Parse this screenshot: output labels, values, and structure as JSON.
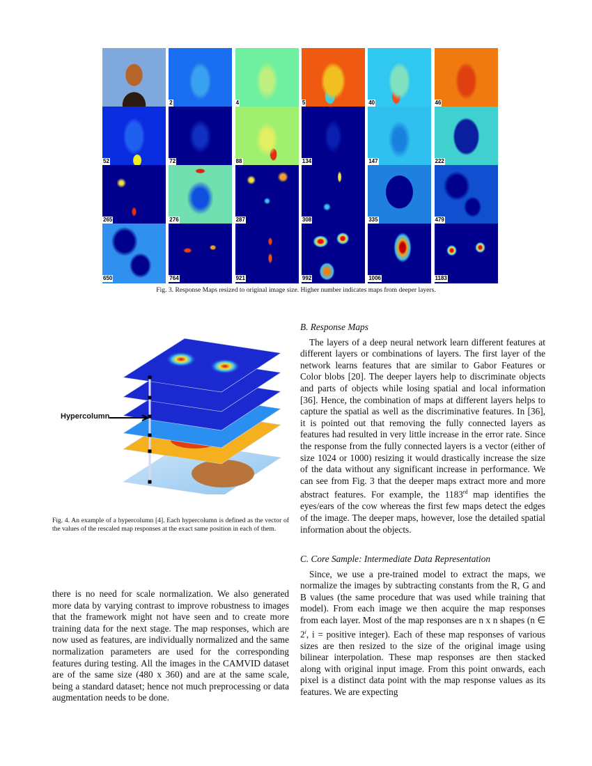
{
  "figure3": {
    "tiles": [
      {
        "label": "",
        "bg": "#7fa9dc",
        "kind": "photo"
      },
      {
        "label": "2",
        "bg": "#1a6ff0"
      },
      {
        "label": "4",
        "bg": "#6ef0a0"
      },
      {
        "label": "5",
        "bg": "#f05a10"
      },
      {
        "label": "40",
        "bg": "#30c8f0"
      },
      {
        "label": "46",
        "bg": "#f07a10"
      },
      {
        "label": "52",
        "bg": "#0a2ce0"
      },
      {
        "label": "72",
        "bg": "#00008c"
      },
      {
        "label": "88",
        "bg": "#a0f070"
      },
      {
        "label": "134",
        "bg": "#00008c"
      },
      {
        "label": "147",
        "bg": "#30c0f0"
      },
      {
        "label": "222",
        "bg": "#40d0d0"
      },
      {
        "label": "265",
        "bg": "#00008c"
      },
      {
        "label": "276",
        "bg": "#70e0b0"
      },
      {
        "label": "287",
        "bg": "#00008c"
      },
      {
        "label": "308",
        "bg": "#00008c"
      },
      {
        "label": "335",
        "bg": "#2080e0"
      },
      {
        "label": "479",
        "bg": "#1050d0"
      },
      {
        "label": "650",
        "bg": "#3090f0"
      },
      {
        "label": "764",
        "bg": "#00008c"
      },
      {
        "label": "921",
        "bg": "#00008c"
      },
      {
        "label": "992",
        "bg": "#00008c"
      },
      {
        "label": "1006",
        "bg": "#00008c"
      },
      {
        "label": "1183",
        "bg": "#00008c"
      }
    ],
    "caption": "Fig. 3.  Response Maps resized to original image size. Higher number indicates maps from deeper layers."
  },
  "figure4": {
    "annotation": "Hypercolumn",
    "caption": "Fig. 4.  An example of a hypercolumn [4]. Each hypercolumn is defined as the vector of the values of the rescaled map responses at the exact same position in each of them."
  },
  "left_column": {
    "paragraph": "there is no need for scale normalization. We also generated more data by varying contrast to improve robustness to images that the framework might not have seen and to create more training data for the next stage. The map responses, which are now used as features, are individually normalized and the same normalization parameters are used for the corresponding features during testing. All the images in the CAMVID dataset are of the same size (480 x 360) and are at the same scale, being a standard dataset; hence not much preprocessing or data augmentation needs to be done."
  },
  "section_b": {
    "heading": "B.  Response Maps",
    "text_before": "The layers of a deep neural network learn different features at different layers or combinations of layers. The first layer of the network learns features that are similar to Gabor Features or Color blobs [20]. The deeper layers help to discriminate objects and parts of objects while losing spatial and local information [36]. Hence, the combination of maps at different layers helps to capture the spatial as well as the discriminative features. In [36], it is pointed out that removing the fully connected layers as features had resulted in very little increase in the error rate. Since the response from the fully connected layers is a vector (either of size 1024 or 1000) resizing it would drastically increase the size of the data without any significant increase in performance. We can see from Fig. 3 that the deeper maps extract more and more abstract features. For example, the 1183",
    "superscript": "rd",
    "text_after": " map identifies the eyes/ears of the cow whereas the first few maps detect the edges of the image. The deeper maps, however, lose the detailed spatial information about the objects."
  },
  "section_c": {
    "heading": "C.  Core Sample: Intermediate Data Representation",
    "text_before": "Since, we use a pre-trained model to extract the maps, we normalize the images by subtracting constants from the R, G and B values (the same procedure that was used while training that model). From each image we then acquire the map responses from each layer. Most of the map responses are n x n shapes (n ∈ 2",
    "superscript": "i",
    "text_after": ", i = positive integer). Each of these map responses of various sizes are then resized to the size of the original image using bilinear interpolation. These map responses are then stacked along with original input image. From this point onwards, each pixel is a distinct data point with the map response values as its features. We are expecting"
  }
}
